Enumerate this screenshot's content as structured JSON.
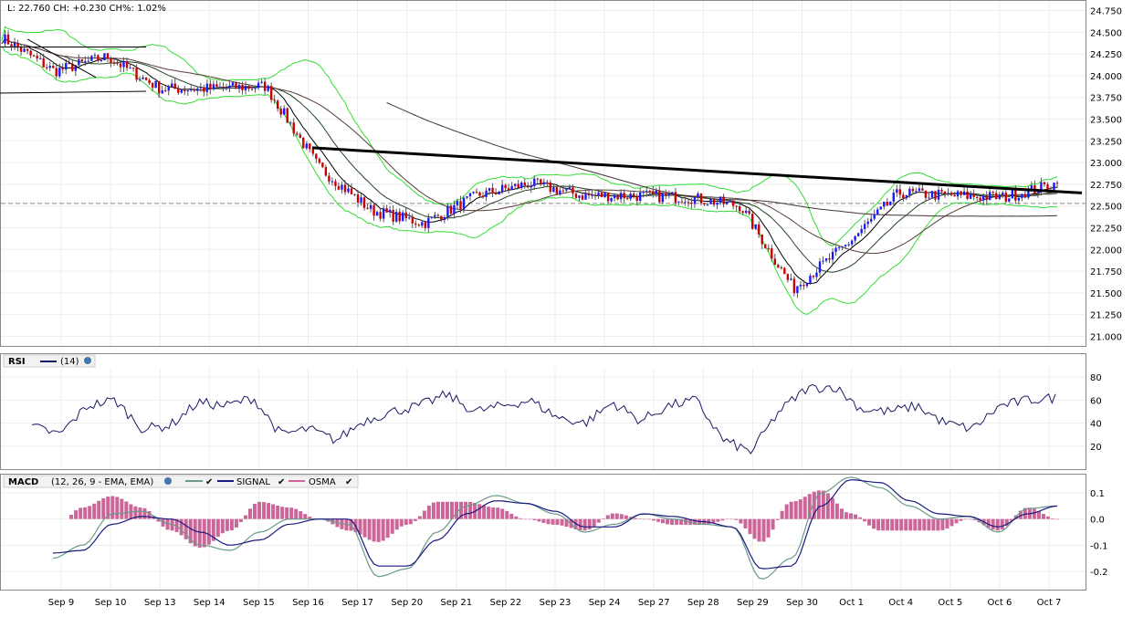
{
  "price_panel": {
    "info": "L: 22.760 CH: +0.230 CH%: 1.02%",
    "y_ticks": [
      "24.750",
      "24.500",
      "24.250",
      "24.000",
      "23.750",
      "23.500",
      "23.250",
      "23.000",
      "22.750",
      "22.500",
      "22.250",
      "22.000",
      "21.750",
      "21.500",
      "21.250",
      "21.000"
    ]
  },
  "rsi_panel": {
    "label": "RSI",
    "param": "(14)",
    "y_ticks": [
      "80",
      "60",
      "40",
      "20"
    ]
  },
  "macd_panel": {
    "label": "MACD",
    "param": "(12, 26, 9 - EMA, EMA)",
    "signal_label": "SIGNAL",
    "osma_label": "OSMA",
    "y_ticks": [
      "0.1",
      "0.0",
      "-0.1",
      "-0.2"
    ]
  },
  "x_labels": [
    "Sep 9",
    "Sep 10",
    "Sep 13",
    "Sep 14",
    "Sep 15",
    "Sep 16",
    "Sep 17",
    "Sep 20",
    "Sep 21",
    "Sep 22",
    "Sep 23",
    "Sep 24",
    "Sep 27",
    "Sep 28",
    "Sep 29",
    "Sep 30",
    "Oct 1",
    "Oct 4",
    "Oct 5",
    "Oct 6",
    "Oct 7"
  ],
  "colors": {
    "up": "#1a1aff",
    "down": "#cc0000",
    "bollinger": "#33dd33",
    "ma_fast": "#000000",
    "ma_slow": "#5a3b3b",
    "rsi": "#1a1a66",
    "macd": "#6a9a8a",
    "signal": "#1a1a80",
    "osma": "#cc6699"
  },
  "chart_data": [
    {
      "type": "line",
      "name": "price",
      "x": [
        "Sep 9",
        "Sep 10",
        "Sep 13",
        "Sep 14",
        "Sep 15",
        "Sep 16",
        "Sep 17",
        "Sep 20",
        "Sep 21",
        "Sep 22",
        "Sep 23",
        "Sep 24",
        "Sep 27",
        "Sep 28",
        "Sep 29",
        "Sep 30",
        "Oct 1",
        "Oct 4",
        "Oct 5",
        "Oct 6",
        "Oct 7"
      ],
      "close_anchors": [
        24.44,
        24.05,
        24.22,
        23.85,
        23.85,
        23.88,
        22.95,
        22.45,
        22.3,
        22.62,
        22.76,
        22.62,
        22.62,
        22.6,
        22.5,
        21.55,
        22.05,
        22.65,
        22.62,
        22.6,
        22.76
      ],
      "last": 22.76,
      "change": 0.23,
      "change_pct": 1.02,
      "ylim": [
        20.9,
        24.85
      ],
      "trendline": [
        [
          0.0,
          23.17
        ],
        [
          1.0,
          22.65
        ]
      ],
      "reference_level": 22.53
    },
    {
      "type": "line",
      "name": "RSI",
      "period": 14,
      "anchors": [
        37,
        30,
        55,
        60,
        35,
        38,
        58,
        55,
        62,
        30,
        35,
        25,
        42,
        50,
        55,
        65,
        50,
        55,
        60,
        45,
        40,
        58,
        42,
        55,
        60,
        25,
        15,
        50,
        70,
        72,
        52,
        50,
        55,
        40,
        35,
        55,
        60,
        62
      ],
      "ylim": [
        0,
        100
      ]
    },
    {
      "type": "line",
      "name": "MACD",
      "params": "(12, 26, 9 - EMA, EMA)",
      "macd_anchors": [
        -0.15,
        -0.1,
        0.02,
        0.03,
        -0.02,
        -0.1,
        -0.12,
        -0.05,
        0.0,
        0.0,
        -0.02,
        -0.22,
        -0.19,
        -0.05,
        0.05,
        0.09,
        0.06,
        0.02,
        -0.05,
        -0.02,
        0.02,
        0.0,
        -0.02,
        -0.03,
        -0.23,
        -0.15,
        0.1,
        0.16,
        0.12,
        0.05,
        0.0,
        0.01,
        -0.05,
        0.04,
        0.05
      ],
      "signal_anchors": [
        -0.13,
        -0.12,
        -0.02,
        0.01,
        0.0,
        -0.05,
        -0.1,
        -0.08,
        -0.02,
        0.0,
        0.0,
        -0.18,
        -0.18,
        -0.08,
        0.02,
        0.07,
        0.06,
        0.03,
        -0.03,
        -0.03,
        0.02,
        0.01,
        -0.01,
        -0.03,
        -0.19,
        -0.18,
        0.05,
        0.15,
        0.14,
        0.07,
        0.02,
        0.01,
        -0.03,
        0.02,
        0.05
      ],
      "ylim": [
        -0.27,
        0.17
      ]
    }
  ]
}
